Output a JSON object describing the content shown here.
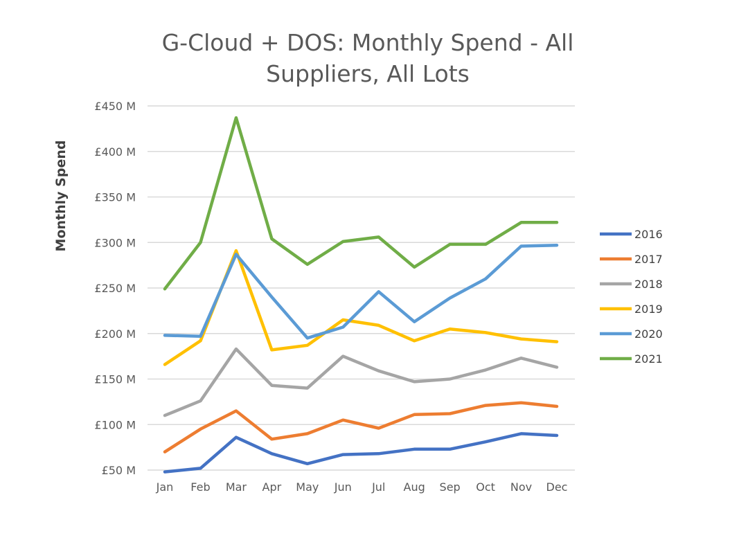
{
  "chart_data": {
    "type": "line",
    "title_lines": [
      "G-Cloud + DOS: Monthly Spend - All",
      "Suppliers, All Lots"
    ],
    "ylabel": "Monthly Spend",
    "xlabel": "",
    "categories": [
      "Jan",
      "Feb",
      "Mar",
      "Apr",
      "May",
      "Jun",
      "Jul",
      "Aug",
      "Sep",
      "Oct",
      "Nov",
      "Dec"
    ],
    "ylim": [
      50,
      450
    ],
    "yticks": [
      50,
      100,
      150,
      200,
      250,
      300,
      350,
      400,
      450
    ],
    "ytick_labels": [
      "£50 M",
      "£100 M",
      "£150 M",
      "£200 M",
      "£250 M",
      "£300 M",
      "£350 M",
      "£400 M",
      "£450 M"
    ],
    "grid": true,
    "legend_position": "right",
    "series": [
      {
        "name": "2016",
        "color": "#4472c4",
        "values": [
          48,
          52,
          86,
          68,
          57,
          67,
          68,
          73,
          73,
          81,
          90,
          88
        ]
      },
      {
        "name": "2017",
        "color": "#ed7d31",
        "values": [
          70,
          95,
          115,
          84,
          90,
          105,
          96,
          111,
          112,
          121,
          124,
          120
        ]
      },
      {
        "name": "2018",
        "color": "#a5a5a5",
        "values": [
          110,
          126,
          183,
          143,
          140,
          175,
          159,
          147,
          150,
          160,
          173,
          163
        ]
      },
      {
        "name": "2019",
        "color": "#ffc000",
        "values": [
          166,
          192,
          291,
          182,
          187,
          215,
          209,
          192,
          205,
          201,
          194,
          191
        ]
      },
      {
        "name": "2020",
        "color": "#5b9bd5",
        "values": [
          198,
          197,
          287,
          240,
          195,
          207,
          246,
          213,
          239,
          260,
          296,
          297
        ]
      },
      {
        "name": "2021",
        "color": "#70ad47",
        "values": [
          249,
          300,
          437,
          304,
          276,
          301,
          306,
          273,
          298,
          298,
          322,
          322
        ]
      }
    ]
  }
}
